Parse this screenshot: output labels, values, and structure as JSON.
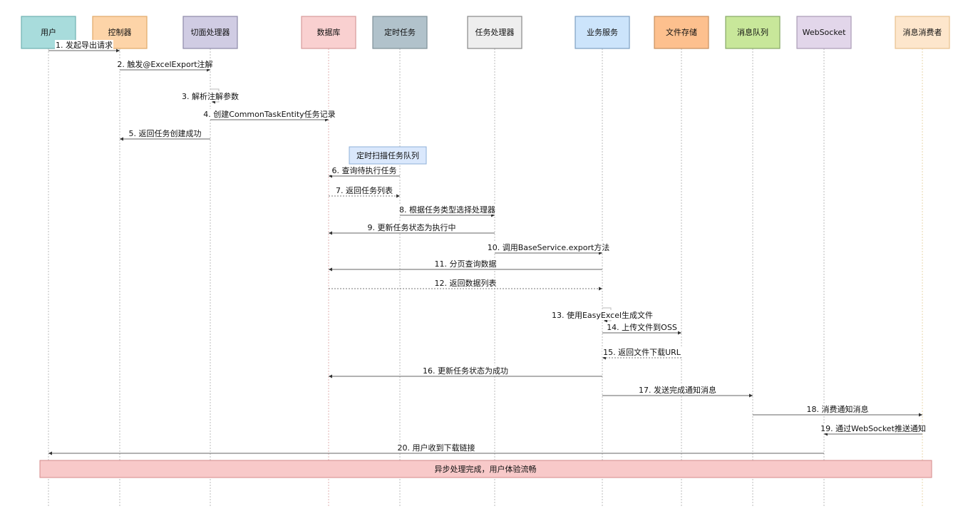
{
  "participants": [
    {
      "label": "用户",
      "fill": "#a8dcdc",
      "stroke": "#6fb1b1",
      "line": "#bbbbbb"
    },
    {
      "label": "控制器",
      "fill": "#fdd4a8",
      "stroke": "#e0a968",
      "line": "#bbbbbb"
    },
    {
      "label": "切面处理器",
      "fill": "#d0cce3",
      "stroke": "#8e8aa8",
      "line": "#bbbbbb"
    },
    {
      "label": "数据库",
      "fill": "#f9d0d0",
      "stroke": "#d79a9a",
      "line": "#e0b0b0"
    },
    {
      "label": "定时任务",
      "fill": "#b1c2cb",
      "stroke": "#7f8f98",
      "line": "#bbbbbb"
    },
    {
      "label": "任务处理器",
      "fill": "#eeeeee",
      "stroke": "#888888",
      "line": "#bbbbbb"
    },
    {
      "label": "业务服务",
      "fill": "#cce4fb",
      "stroke": "#7d9fc2",
      "line": "#bbbbbb"
    },
    {
      "label": "文件存储",
      "fill": "#fdc08e",
      "stroke": "#c8905e",
      "line": "#bbbbbb"
    },
    {
      "label": "消息队列",
      "fill": "#c8e79a",
      "stroke": "#87a867",
      "line": "#bbbbbb"
    },
    {
      "label": "WebSocket",
      "fill": "#e2d6ea",
      "stroke": "#a99bb6",
      "line": "#bbbbbb"
    },
    {
      "label": "消息消费者",
      "fill": "#fde6cc",
      "stroke": "#e8c08e",
      "line": "#e8d4a8"
    }
  ],
  "note": {
    "label": "定时扫描任务队列",
    "fill": "#dae8fc",
    "stroke": "#8fb0d8"
  },
  "messages": [
    {
      "label": "1. 发起导出请求",
      "from": 0,
      "to": 1,
      "dashed": false
    },
    {
      "label": "2. 触发@ExcelExport注解",
      "from": 1,
      "to": 2,
      "dashed": false
    },
    {
      "label": "3. 解析注解参数",
      "from": 2,
      "to": 2,
      "dashed": false
    },
    {
      "label": "4. 创建CommonTaskEntity任务记录",
      "from": 2,
      "to": 3,
      "dashed": false
    },
    {
      "label": "5. 返回任务创建成功",
      "from": 2,
      "to": 1,
      "dashed": false
    },
    {
      "label": "6. 查询待执行任务",
      "from": 4,
      "to": 3,
      "dashed": false
    },
    {
      "label": "7. 返回任务列表",
      "from": 3,
      "to": 4,
      "dashed": true
    },
    {
      "label": "8. 根据任务类型选择处理器",
      "from": 4,
      "to": 5,
      "dashed": false
    },
    {
      "label": "9. 更新任务状态为执行中",
      "from": 5,
      "to": 3,
      "dashed": false
    },
    {
      "label": "10. 调用BaseService.export方法",
      "from": 5,
      "to": 6,
      "dashed": false
    },
    {
      "label": "11. 分页查询数据",
      "from": 6,
      "to": 3,
      "dashed": false
    },
    {
      "label": "12. 返回数据列表",
      "from": 3,
      "to": 6,
      "dashed": true
    },
    {
      "label": "13. 使用EasyExcel生成文件",
      "from": 6,
      "to": 6,
      "dashed": false
    },
    {
      "label": "14. 上传文件到OSS",
      "from": 6,
      "to": 7,
      "dashed": false
    },
    {
      "label": "15. 返回文件下载URL",
      "from": 7,
      "to": 6,
      "dashed": true
    },
    {
      "label": "16. 更新任务状态为成功",
      "from": 6,
      "to": 3,
      "dashed": false
    },
    {
      "label": "17. 发送完成通知消息",
      "from": 6,
      "to": 8,
      "dashed": false
    },
    {
      "label": "18. 消费通知消息",
      "from": 8,
      "to": 10,
      "dashed": false
    },
    {
      "label": "19. 通过WebSocket推送通知",
      "from": 10,
      "to": 9,
      "dashed": false
    },
    {
      "label": "20. 用户收到下载链接",
      "from": 9,
      "to": 0,
      "dashed": false
    }
  ],
  "footer": {
    "label": "异步处理完成，用户体验流畅",
    "fill": "#f8c9c9",
    "stroke": "#d48a8a"
  }
}
